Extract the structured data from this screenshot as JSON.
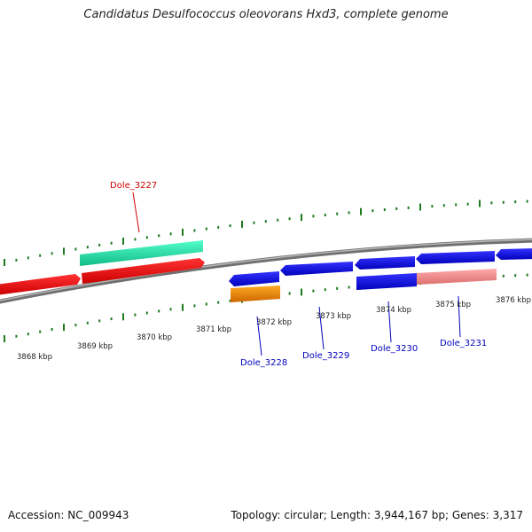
{
  "title": "Candidatus Desulfococcus oleovorans Hxd3, complete genome",
  "footer": {
    "accession": "Accession: NC_009943",
    "summary": "Topology: circular; Length: 3,944,167 bp; Genes: 3,317"
  },
  "colors": {
    "backbone": "#8c8c8c",
    "tick": "#1e7a1e",
    "forward_label": "#cc0000",
    "reverse_label": "#0000bb"
  },
  "scale": {
    "unit": "kbp",
    "ticks": [
      "3868 kbp",
      "3869 kbp",
      "3870 kbp",
      "3871 kbp",
      "3872 kbp",
      "3873 kbp",
      "3874 kbp",
      "3875 kbp",
      "3876 kbp"
    ]
  },
  "labels": {
    "dole_3227": "Dole_3227",
    "dole_3228": "Dole_3228",
    "dole_3229": "Dole_3229",
    "dole_3230": "Dole_3230",
    "dole_3231": "Dole_3231"
  },
  "feature_colors": {
    "red_cds": "#ee1111",
    "teal_feature": "#22ddaa",
    "blue_cds": "#1111dd",
    "orange_feature": "#ee8800",
    "pink_feature": "#ee8888"
  }
}
